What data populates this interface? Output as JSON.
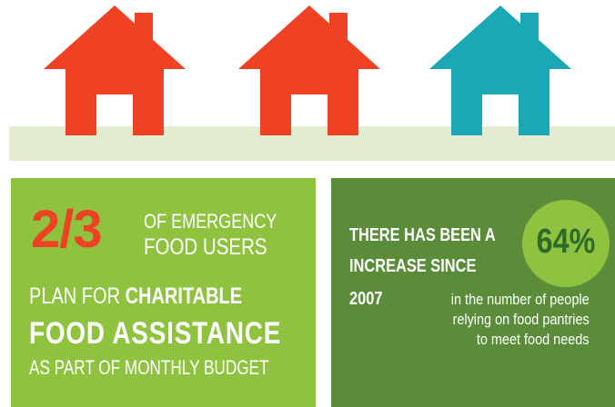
{
  "colors": {
    "house_red": "#ef4123",
    "house_teal": "#1aa8b5",
    "ground": "#e3ecd1",
    "panel_light_green": "#8fc33f",
    "panel_dark_green": "#5a8c3a",
    "badge_green": "#8fc33f",
    "badge_text": "#2f6a2c",
    "text_white": "#ffffff"
  },
  "houses": [
    {
      "icon": "house-icon",
      "color": "#ef4123"
    },
    {
      "icon": "house-icon",
      "color": "#ef4123"
    },
    {
      "icon": "house-icon",
      "color": "#1aa8b5"
    }
  ],
  "left_panel": {
    "fraction": "2/3",
    "line1": "OF EMERGENCY",
    "line2": "FOOD USERS",
    "line3_regular": "PLAN FOR ",
    "line3_bold": "CHARITABLE",
    "line4": "FOOD ASSISTANCE",
    "line5": "AS PART OF MONTHLY BUDGET"
  },
  "right_panel": {
    "line1": "THERE HAS BEEN A",
    "line2": "INCREASE SINCE",
    "year": "2007",
    "percent": "64%",
    "detail": [
      "in the number of people",
      "relying on food pantries",
      "to meet food needs"
    ]
  }
}
